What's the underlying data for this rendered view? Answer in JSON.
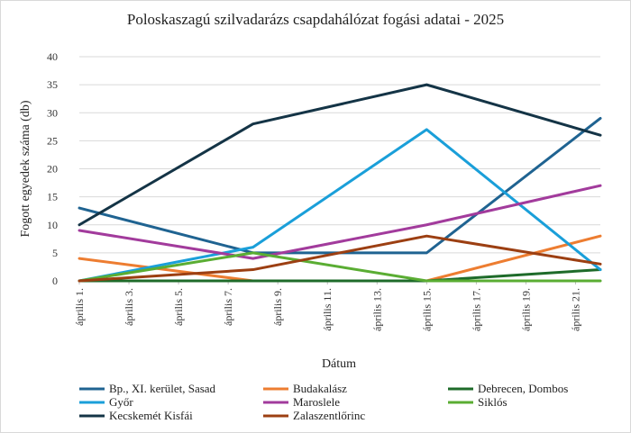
{
  "chart_data": {
    "type": "line",
    "title": "Poloskaszagú szilvadarázs csapdahálózat fogási adatai - 2025",
    "xlabel": "Dátum",
    "ylabel": "Fogott egyedek száma (db)",
    "ylim": [
      0,
      40
    ],
    "yticks": [
      0,
      5,
      10,
      15,
      20,
      25,
      30,
      35,
      40
    ],
    "x": [
      "április 1.",
      "április 8.",
      "április 15.",
      "április 22."
    ],
    "xtick_labels": [
      "április 1.",
      "április 3.",
      "április 5.",
      "április 7.",
      "április 9.",
      "április 11.",
      "április 13.",
      "április 15.",
      "április 17.",
      "április 19.",
      "április 21."
    ],
    "grid": true,
    "legend": "bottom",
    "series": [
      {
        "name": "Bp., XI. kerület, Sasad",
        "color": "#1f6391",
        "values": [
          13,
          5,
          5,
          29
        ]
      },
      {
        "name": "Budakalász",
        "color": "#ed7d31",
        "values": [
          4,
          0,
          0,
          8
        ]
      },
      {
        "name": "Debrecen, Dombos",
        "color": "#1e6b2a",
        "values": [
          0,
          0,
          0,
          2
        ]
      },
      {
        "name": "Győr",
        "color": "#1a9fd9",
        "values": [
          0,
          6,
          27,
          2
        ]
      },
      {
        "name": "Maroslele",
        "color": "#a23b9c",
        "values": [
          9,
          4,
          10,
          17
        ]
      },
      {
        "name": "Siklós",
        "color": "#5aad33",
        "values": [
          0,
          5,
          0,
          0
        ]
      },
      {
        "name": "Kecskemét Kisfái",
        "color": "#143446",
        "values": [
          10,
          28,
          35,
          26
        ]
      },
      {
        "name": "Zalaszentlőrinc",
        "color": "#9c3f12",
        "values": [
          0,
          2,
          8,
          3
        ]
      }
    ]
  }
}
